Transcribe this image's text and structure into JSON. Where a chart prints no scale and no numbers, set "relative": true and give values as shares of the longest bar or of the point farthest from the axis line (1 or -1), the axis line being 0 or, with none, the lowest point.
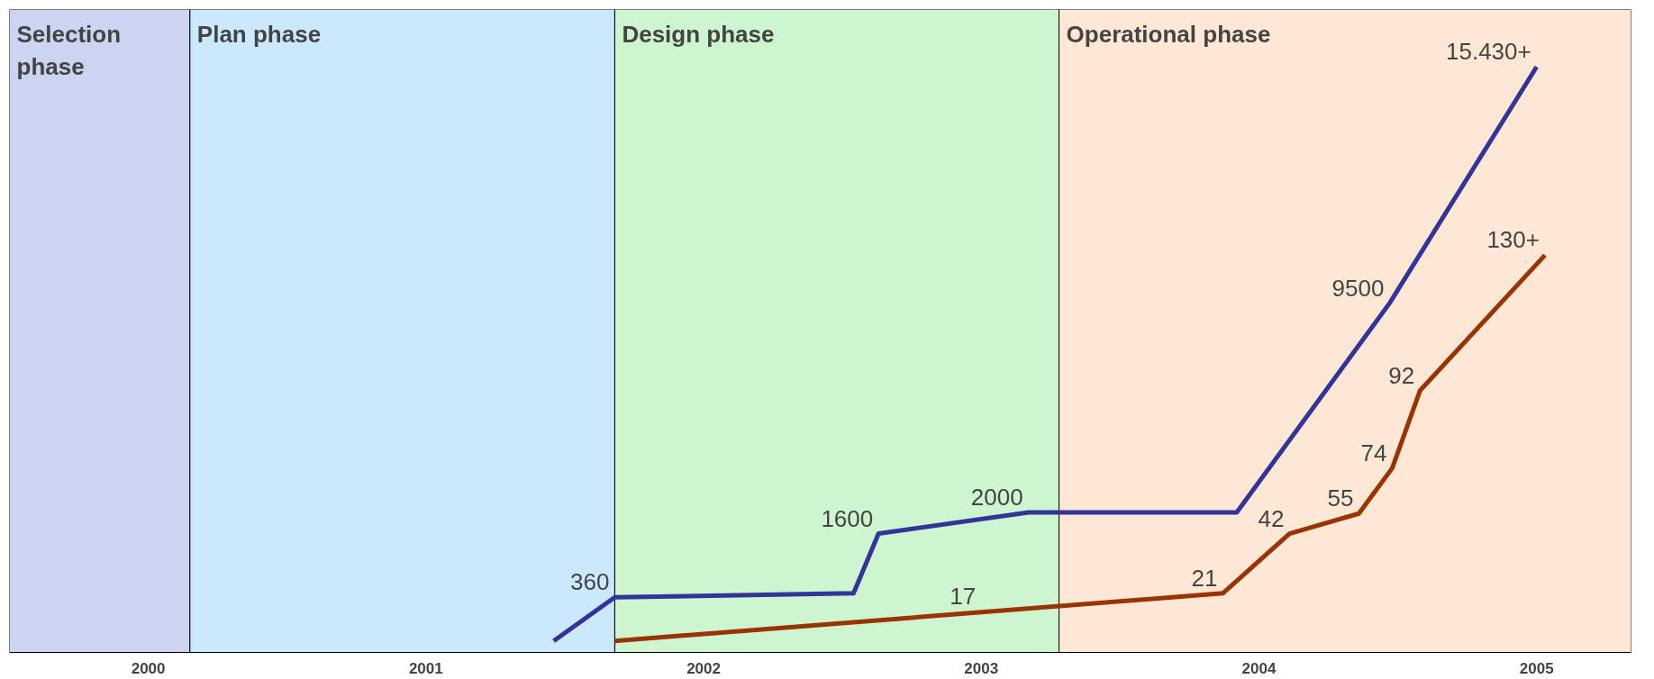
{
  "chart_data": {
    "type": "line",
    "relative": true,
    "tick_labels": "x",
    "xlim": [
      2000,
      2005.84
    ],
    "xticks": [
      {
        "value": 2000.5,
        "label": "2000"
      },
      {
        "value": 2001.5,
        "label": "2001"
      },
      {
        "value": 2002.5,
        "label": "2002"
      },
      {
        "value": 2003.5,
        "label": "2003"
      },
      {
        "value": 2004.5,
        "label": "2004"
      },
      {
        "value": 2005.5,
        "label": "2005"
      }
    ],
    "series": [
      {
        "color": "#333399",
        "x": [
          2001.96,
          2002.18,
          2003.04,
          2003.13,
          2003.67,
          2004.42,
          2004.97,
          2005.5
        ],
        "values": [
          0,
          0.076,
          0.083,
          0.187,
          0.224,
          0.224,
          0.588,
          1
        ]
      },
      {
        "color": "#993300",
        "x": [
          2002.18,
          2004.37,
          2004.61,
          2004.86,
          2004.98,
          2005.08,
          2005.53
        ],
        "values": [
          0,
          0.083,
          0.187,
          0.222,
          0.301,
          0.436,
          0.672
        ]
      }
    ],
    "bands": [
      {
        "axis": "x",
        "from": 2000,
        "to": 2000.65,
        "label": "Selection phase",
        "color": "#ccd4f2"
      },
      {
        "axis": "x",
        "from": 2000.65,
        "to": 2002.18,
        "label": "Plan phase",
        "color": "#cce8fc"
      },
      {
        "axis": "x",
        "from": 2002.18,
        "to": 2003.78,
        "label": "Design phase",
        "color": "#ccf5d0"
      },
      {
        "axis": "x",
        "from": 2003.78,
        "to": 2005.84,
        "label": "Operational phase",
        "color": "#fde8d6"
      }
    ],
    "annotations": [
      {
        "text": "360",
        "x": 2002.18,
        "y": 0.076
      },
      {
        "text": "1600",
        "x": 2003.13,
        "y": 0.187
      },
      {
        "text": "2000",
        "x": 2003.67,
        "y": 0.224
      },
      {
        "text": "9500",
        "x": 2004.97,
        "y": 0.588
      },
      {
        "text": "15.430+",
        "x": 2005.5,
        "y": 1
      },
      {
        "text": "17",
        "x": 2003.5,
        "y": 0.052
      },
      {
        "text": "21",
        "x": 2004.37,
        "y": 0.083
      },
      {
        "text": "42",
        "x": 2004.61,
        "y": 0.187
      },
      {
        "text": "55",
        "x": 2004.86,
        "y": 0.222
      },
      {
        "text": "74",
        "x": 2004.98,
        "y": 0.301
      },
      {
        "text": "92",
        "x": 2005.08,
        "y": 0.436
      },
      {
        "text": "130+",
        "x": 2005.53,
        "y": 0.672
      }
    ]
  }
}
